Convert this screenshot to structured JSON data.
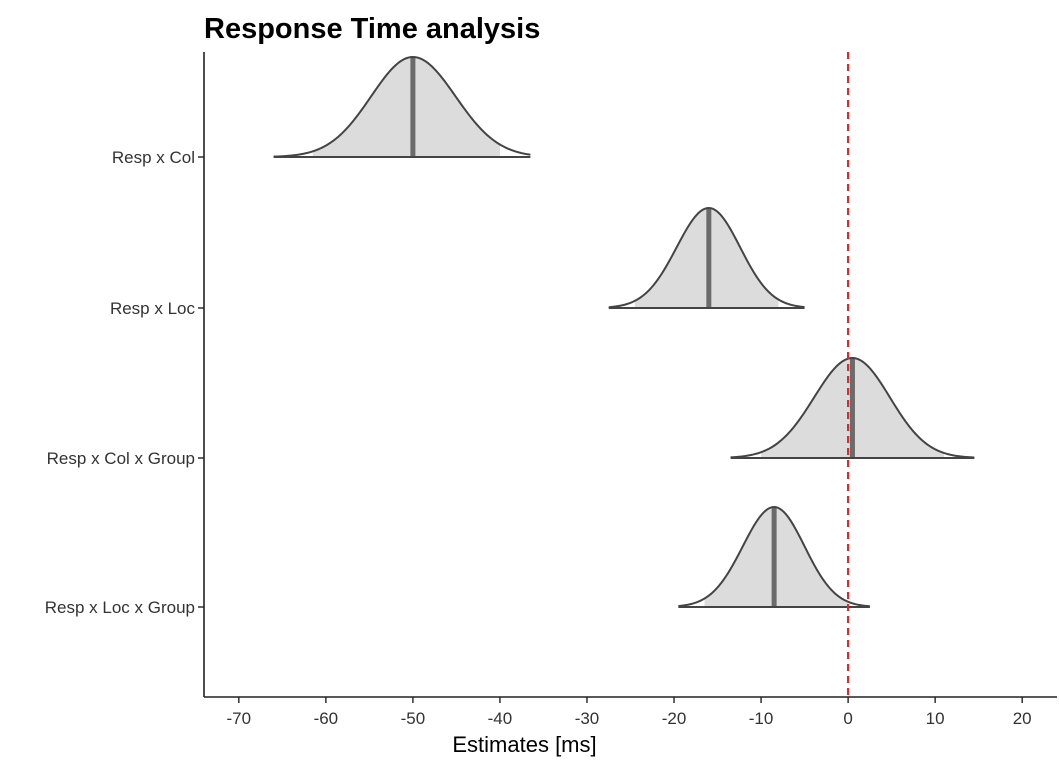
{
  "chart_data": {
    "type": "ridgeline",
    "title": "Response Time analysis",
    "xlabel": "Estimates [ms]",
    "ylabel": "",
    "xlim": [
      -74,
      24
    ],
    "x_ticks": [
      -70,
      -60,
      -50,
      -40,
      -30,
      -20,
      -10,
      0,
      10,
      20
    ],
    "reference_line": {
      "x": 0,
      "color": "#e0282a",
      "style": "dashed"
    },
    "grid": false,
    "series": [
      {
        "name": "Resp x Col",
        "median": -50.0,
        "min": -66.0,
        "max": -36.5,
        "ci": [
          -61.5,
          -40.0
        ],
        "left_sd": 4.8,
        "right_sd": 4.9
      },
      {
        "name": "Resp x Loc",
        "median": -16.0,
        "min": -27.5,
        "max": -5.0,
        "ci": [
          -24.5,
          -8.0
        ],
        "left_sd": 3.7,
        "right_sd": 3.6
      },
      {
        "name": "Resp x Col x Group",
        "median": 0.5,
        "min": -13.5,
        "max": 14.5,
        "ci": [
          -10.0,
          11.0
        ],
        "left_sd": 4.4,
        "right_sd": 4.3
      },
      {
        "name": "Resp x Loc x Group",
        "median": -8.5,
        "min": -19.5,
        "max": 2.5,
        "ci": [
          -16.5,
          0.0
        ],
        "left_sd": 3.6,
        "right_sd": 3.5
      }
    ]
  }
}
